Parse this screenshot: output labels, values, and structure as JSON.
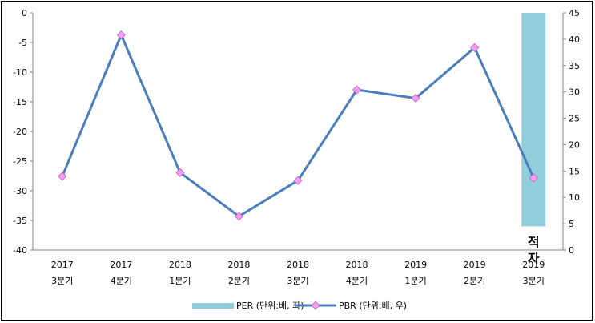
{
  "chart_data": {
    "type": "bar+line",
    "categories": [
      {
        "year": "2017",
        "quarter": "3분기"
      },
      {
        "year": "2017",
        "quarter": "4분기"
      },
      {
        "year": "2018",
        "quarter": "1분기"
      },
      {
        "year": "2018",
        "quarter": "2분기"
      },
      {
        "year": "2018",
        "quarter": "3분기"
      },
      {
        "year": "2018",
        "quarter": "4분기"
      },
      {
        "year": "2019",
        "quarter": "1분기"
      },
      {
        "year": "2019",
        "quarter": "2분기"
      },
      {
        "year": "2019",
        "quarter": "3분기"
      }
    ],
    "left_axis": {
      "min": -40,
      "max": 0,
      "step": 5
    },
    "right_axis": {
      "min": 0,
      "max": 45,
      "step": 5
    },
    "series": [
      {
        "name": "PER (단위:배, 좌)",
        "kind": "bar",
        "axis": "left",
        "color": "#92cddc",
        "values": [
          null,
          null,
          null,
          null,
          null,
          null,
          null,
          null,
          -36
        ]
      },
      {
        "name": "PBR (단위:배, 우)",
        "kind": "line",
        "axis": "right",
        "color": "#4a7ebb",
        "marker_color": "#ff99ff",
        "values": [
          14.0,
          40.8,
          14.7,
          6.4,
          13.2,
          30.4,
          28.8,
          38.4,
          13.7
        ]
      }
    ],
    "annotation": {
      "text": "적자",
      "category_index": 8,
      "color": "#000000"
    },
    "grid": false,
    "legend_position": "bottom"
  }
}
